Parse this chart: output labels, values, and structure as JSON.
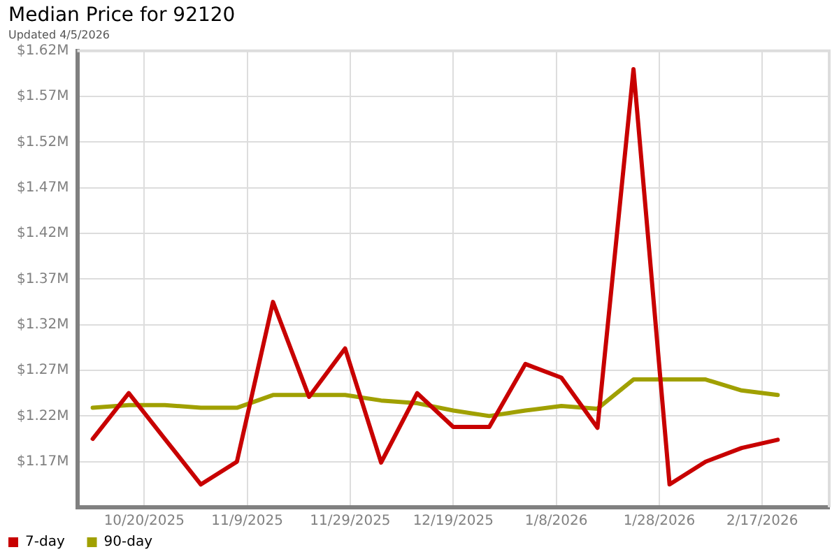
{
  "chart_data": {
    "type": "line",
    "title": "Median Price for 92120",
    "subtitle": "Updated 4/5/2026",
    "x": [
      "2025-10-10",
      "2025-10-17",
      "2025-10-24",
      "2025-10-31",
      "2025-11-07",
      "2025-11-14",
      "2025-11-21",
      "2025-11-28",
      "2025-12-05",
      "2025-12-12",
      "2025-12-19",
      "2025-12-26",
      "2026-01-02",
      "2026-01-09",
      "2026-01-16",
      "2026-01-23",
      "2026-01-30",
      "2026-02-06",
      "2026-02-13",
      "2026-02-20"
    ],
    "series": [
      {
        "name": "7-day",
        "color": "#c80000",
        "values": [
          1.195,
          1.245,
          1.195,
          1.145,
          1.17,
          1.345,
          1.241,
          1.294,
          1.169,
          1.245,
          1.208,
          1.208,
          1.277,
          1.262,
          1.207,
          1.6,
          1.145,
          1.17,
          1.185,
          1.194
        ]
      },
      {
        "name": "90-day",
        "color": "#a0a000",
        "values": [
          1.229,
          1.232,
          1.232,
          1.229,
          1.229,
          1.243,
          1.243,
          1.243,
          1.237,
          1.234,
          1.226,
          1.22,
          1.226,
          1.231,
          1.228,
          1.26,
          1.26,
          1.26,
          1.248,
          1.243
        ]
      }
    ],
    "xlim": [
      "2025-10-07",
      "2026-03-02"
    ],
    "xticks": [
      {
        "value": "2025-10-20",
        "label": "10/20/2025"
      },
      {
        "value": "2025-11-09",
        "label": "11/9/2025"
      },
      {
        "value": "2025-11-29",
        "label": "11/29/2025"
      },
      {
        "value": "2025-12-19",
        "label": "12/19/2025"
      },
      {
        "value": "2026-01-08",
        "label": "1/8/2026"
      },
      {
        "value": "2026-01-28",
        "label": "1/28/2026"
      },
      {
        "value": "2026-02-17",
        "label": "2/17/2026"
      }
    ],
    "ylim": [
      1.12,
      1.62
    ],
    "yticks": [
      {
        "value": 1.17,
        "label": "$1.17M"
      },
      {
        "value": 1.22,
        "label": "$1.22M"
      },
      {
        "value": 1.27,
        "label": "$1.27M"
      },
      {
        "value": 1.32,
        "label": "$1.32M"
      },
      {
        "value": 1.37,
        "label": "$1.37M"
      },
      {
        "value": 1.42,
        "label": "$1.42M"
      },
      {
        "value": 1.47,
        "label": "$1.47M"
      },
      {
        "value": 1.52,
        "label": "$1.52M"
      },
      {
        "value": 1.57,
        "label": "$1.57M"
      },
      {
        "value": 1.62,
        "label": "$1.62M"
      }
    ],
    "grid": true,
    "legend": "bottom left",
    "marker": "none",
    "line_style": "solid"
  }
}
